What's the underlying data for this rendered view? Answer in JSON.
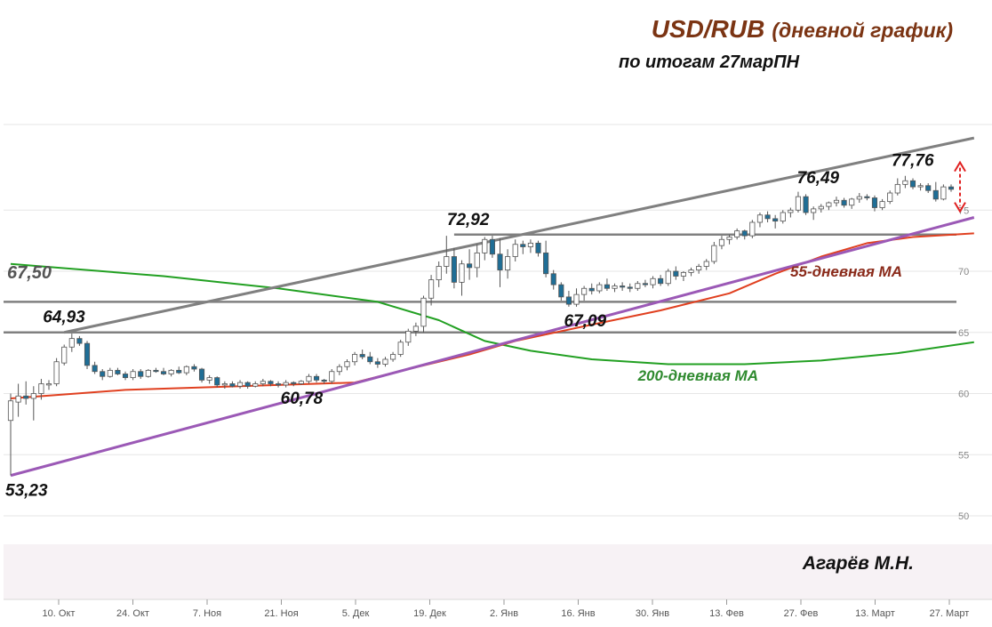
{
  "title": {
    "main": "USD/RUB",
    "sub": "(дневной график)",
    "line2": "по итогам 27марПН"
  },
  "author": "Агарёв М.Н.",
  "chart_data": {
    "type": "candlestick",
    "grid": true,
    "y_axis": {
      "side": "right",
      "ticks": [
        50,
        55,
        60,
        65,
        70,
        75
      ],
      "ylim": [
        50,
        82
      ]
    },
    "x_axis": {
      "ticks": [
        "10. Окт",
        "24. Окт",
        "7. Ноя",
        "21. Ноя",
        "5. Дек",
        "19. Дек",
        "2. Янв",
        "16. Янв",
        "30. Янв",
        "13. Фев",
        "27. Фев",
        "13. Март",
        "27. Март"
      ]
    },
    "candles": [
      [
        57.8,
        60.0,
        53.3,
        59.4
      ],
      [
        59.3,
        60.8,
        58.1,
        59.8
      ],
      [
        59.8,
        61.0,
        59.1,
        59.6
      ],
      [
        59.6,
        60.6,
        57.8,
        60.0
      ],
      [
        60.0,
        61.2,
        59.5,
        60.8
      ],
      [
        60.7,
        61.1,
        60.3,
        60.8
      ],
      [
        60.8,
        62.9,
        60.6,
        62.6
      ],
      [
        62.5,
        64.0,
        62.3,
        63.8
      ],
      [
        63.8,
        64.9,
        63.4,
        64.5
      ],
      [
        64.5,
        64.7,
        63.9,
        64.1
      ],
      [
        64.1,
        64.3,
        62.0,
        62.3
      ],
      [
        62.3,
        62.6,
        61.6,
        61.8
      ],
      [
        61.8,
        62.0,
        61.1,
        61.4
      ],
      [
        61.4,
        62.1,
        61.3,
        61.9
      ],
      [
        61.9,
        62.1,
        61.5,
        61.6
      ],
      [
        61.6,
        61.8,
        61.1,
        61.3
      ],
      [
        61.3,
        62.0,
        61.1,
        61.8
      ],
      [
        61.8,
        62.0,
        61.2,
        61.4
      ],
      [
        61.4,
        62.0,
        61.3,
        61.9
      ],
      [
        61.9,
        62.1,
        61.7,
        61.8
      ],
      [
        61.8,
        62.1,
        61.5,
        61.6
      ],
      [
        61.6,
        62.0,
        61.4,
        61.9
      ],
      [
        61.9,
        62.2,
        61.6,
        61.7
      ],
      [
        61.7,
        62.3,
        61.5,
        62.2
      ],
      [
        62.2,
        62.4,
        61.8,
        62.0
      ],
      [
        62.0,
        62.1,
        60.9,
        61.1
      ],
      [
        61.1,
        61.5,
        60.8,
        61.3
      ],
      [
        61.3,
        61.4,
        60.5,
        60.7
      ],
      [
        60.7,
        61.0,
        60.4,
        60.8
      ],
      [
        60.8,
        61.0,
        60.5,
        60.6
      ],
      [
        60.6,
        61.1,
        60.4,
        60.9
      ],
      [
        60.9,
        61.0,
        60.4,
        60.6
      ],
      [
        60.6,
        61.0,
        60.5,
        60.8
      ],
      [
        60.8,
        61.2,
        60.6,
        61.0
      ],
      [
        61.0,
        61.1,
        60.6,
        60.8
      ],
      [
        60.8,
        61.0,
        60.5,
        60.7
      ],
      [
        60.7,
        61.1,
        60.5,
        60.9
      ],
      [
        60.9,
        61.0,
        60.6,
        60.8
      ],
      [
        60.8,
        61.1,
        60.7,
        61.0
      ],
      [
        61.0,
        61.6,
        60.8,
        61.4
      ],
      [
        61.4,
        61.6,
        60.9,
        61.1
      ],
      [
        61.1,
        61.2,
        60.8,
        61.0
      ],
      [
        61.0,
        62.0,
        60.8,
        61.8
      ],
      [
        61.8,
        62.4,
        61.5,
        62.2
      ],
      [
        62.2,
        62.8,
        61.9,
        62.6
      ],
      [
        62.6,
        63.4,
        62.3,
        63.2
      ],
      [
        63.2,
        63.6,
        62.8,
        63.0
      ],
      [
        63.0,
        63.4,
        62.4,
        62.6
      ],
      [
        62.6,
        62.9,
        62.1,
        62.4
      ],
      [
        62.4,
        63.0,
        62.2,
        62.8
      ],
      [
        62.8,
        63.4,
        62.6,
        63.2
      ],
      [
        63.2,
        64.4,
        63.0,
        64.2
      ],
      [
        64.2,
        65.3,
        63.9,
        65.1
      ],
      [
        65.1,
        65.8,
        64.7,
        65.5
      ],
      [
        65.5,
        68.0,
        65.0,
        67.8
      ],
      [
        67.8,
        69.7,
        67.2,
        69.3
      ],
      [
        69.3,
        70.8,
        68.7,
        70.4
      ],
      [
        70.4,
        72.9,
        69.8,
        71.2
      ],
      [
        71.2,
        71.9,
        68.6,
        69.1
      ],
      [
        69.1,
        70.9,
        68.0,
        70.6
      ],
      [
        70.6,
        71.8,
        69.3,
        70.3
      ],
      [
        70.3,
        72.2,
        69.5,
        71.5
      ],
      [
        71.5,
        72.8,
        70.9,
        72.6
      ],
      [
        72.6,
        72.9,
        71.1,
        71.4
      ],
      [
        71.4,
        72.7,
        68.7,
        70.1
      ],
      [
        70.1,
        71.8,
        69.4,
        71.2
      ],
      [
        71.2,
        72.6,
        70.8,
        72.2
      ],
      [
        72.2,
        72.5,
        71.4,
        72.0
      ],
      [
        72.0,
        72.6,
        71.5,
        72.3
      ],
      [
        72.3,
        72.5,
        71.2,
        71.5
      ],
      [
        71.5,
        72.5,
        69.5,
        69.8
      ],
      [
        69.8,
        70.1,
        68.5,
        68.9
      ],
      [
        68.9,
        69.1,
        67.6,
        67.9
      ],
      [
        67.9,
        68.4,
        67.1,
        67.3
      ],
      [
        67.3,
        68.6,
        67.1,
        68.1
      ],
      [
        68.1,
        68.8,
        67.6,
        68.6
      ],
      [
        68.6,
        69.0,
        68.1,
        68.4
      ],
      [
        68.4,
        69.1,
        68.2,
        68.9
      ],
      [
        68.9,
        69.4,
        68.4,
        68.6
      ],
      [
        68.6,
        69.0,
        68.3,
        68.8
      ],
      [
        68.8,
        69.1,
        68.4,
        68.7
      ],
      [
        68.7,
        69.0,
        68.3,
        68.6
      ],
      [
        68.6,
        69.2,
        68.4,
        69.0
      ],
      [
        69.0,
        69.3,
        68.7,
        68.9
      ],
      [
        68.9,
        69.6,
        68.6,
        69.4
      ],
      [
        69.4,
        69.7,
        68.8,
        69.0
      ],
      [
        69.0,
        70.2,
        68.8,
        70.0
      ],
      [
        70.0,
        70.4,
        69.3,
        69.6
      ],
      [
        69.6,
        70.0,
        69.2,
        69.9
      ],
      [
        69.9,
        70.3,
        69.6,
        70.1
      ],
      [
        70.1,
        70.6,
        69.8,
        70.4
      ],
      [
        70.4,
        71.0,
        70.1,
        70.8
      ],
      [
        70.8,
        72.4,
        70.6,
        72.1
      ],
      [
        72.1,
        72.9,
        71.8,
        72.6
      ],
      [
        72.6,
        73.0,
        72.2,
        72.8
      ],
      [
        72.8,
        73.5,
        72.6,
        73.3
      ],
      [
        73.3,
        73.4,
        72.6,
        72.9
      ],
      [
        72.9,
        74.2,
        72.7,
        74.0
      ],
      [
        74.0,
        74.8,
        73.6,
        74.6
      ],
      [
        74.6,
        74.9,
        74.0,
        74.3
      ],
      [
        74.3,
        74.6,
        73.5,
        74.1
      ],
      [
        74.1,
        75.0,
        73.9,
        74.8
      ],
      [
        74.8,
        75.2,
        74.4,
        75.0
      ],
      [
        75.0,
        76.5,
        74.8,
        76.1
      ],
      [
        76.1,
        76.3,
        74.6,
        74.8
      ],
      [
        74.8,
        75.3,
        74.2,
        75.1
      ],
      [
        75.1,
        75.5,
        74.8,
        75.3
      ],
      [
        75.3,
        75.7,
        75.0,
        75.6
      ],
      [
        75.6,
        76.1,
        75.3,
        75.8
      ],
      [
        75.8,
        76.0,
        75.2,
        75.4
      ],
      [
        75.4,
        76.0,
        75.1,
        75.9
      ],
      [
        75.9,
        76.4,
        75.6,
        76.1
      ],
      [
        76.1,
        76.3,
        75.8,
        76.0
      ],
      [
        76.0,
        76.2,
        74.9,
        75.2
      ],
      [
        75.2,
        75.9,
        75.0,
        75.7
      ],
      [
        75.7,
        76.6,
        75.5,
        76.4
      ],
      [
        76.4,
        77.6,
        76.2,
        77.1
      ],
      [
        77.1,
        77.8,
        76.8,
        77.4
      ],
      [
        77.4,
        77.6,
        76.7,
        76.9
      ],
      [
        76.9,
        77.2,
        76.6,
        77.0
      ],
      [
        77.0,
        77.2,
        76.4,
        76.6
      ],
      [
        76.6,
        77.3,
        75.7,
        75.9
      ],
      [
        75.9,
        77.1,
        75.8,
        76.9
      ],
      [
        76.9,
        77.1,
        76.5,
        76.7
      ]
    ],
    "ma55": [
      [
        0,
        59.6
      ],
      [
        15,
        60.3
      ],
      [
        30,
        60.6
      ],
      [
        45,
        60.9
      ],
      [
        52,
        62.0
      ],
      [
        60,
        63.2
      ],
      [
        66,
        64.3
      ],
      [
        75,
        65.5
      ],
      [
        85,
        66.8
      ],
      [
        94,
        68.2
      ],
      [
        100,
        69.8
      ],
      [
        106,
        71.2
      ],
      [
        112,
        72.3
      ],
      [
        118,
        72.8
      ],
      [
        126,
        73.1
      ]
    ],
    "ma200": [
      [
        0,
        70.6
      ],
      [
        20,
        69.6
      ],
      [
        35,
        68.6
      ],
      [
        48,
        67.5
      ],
      [
        56,
        66.0
      ],
      [
        62,
        64.3
      ],
      [
        68,
        63.5
      ],
      [
        76,
        62.8
      ],
      [
        86,
        62.4
      ],
      [
        96,
        62.4
      ],
      [
        106,
        62.7
      ],
      [
        116,
        63.3
      ],
      [
        126,
        64.2
      ]
    ],
    "horizontal_levels": [
      67.5,
      65.0,
      73.0
    ],
    "trend_lines": [
      {
        "color": "#808080",
        "from": [
          7,
          65.0
        ],
        "to": [
          126,
          80.9
        ]
      },
      {
        "color": "#9b59b6",
        "from": [
          0,
          53.3
        ],
        "to": [
          126,
          74.4
        ]
      }
    ],
    "annotations": [
      {
        "text": "53,23",
        "x": 0,
        "y": 53.23
      },
      {
        "text": "64,93",
        "x": 7,
        "y": 64.93
      },
      {
        "text": "60,78",
        "x": 36,
        "y": 60.78
      },
      {
        "text": "72,92",
        "x": 58,
        "y": 72.92
      },
      {
        "text": "67,09",
        "x": 74,
        "y": 67.09
      },
      {
        "text": "76,49",
        "x": 104,
        "y": 76.49
      },
      {
        "text": "77,76",
        "x": 118,
        "y": 77.76
      }
    ],
    "level_label": "67,50",
    "ma55_label": "55-дневная МА",
    "ma200_label": "200-дневная МА",
    "colors": {
      "candle_up": "#ffffff",
      "candle_down": "#1f6e96",
      "candle_outline": "#555555",
      "ma55": "#e04020",
      "ma200": "#22a022",
      "level": "#808080",
      "trend_gray": "#808080",
      "trend_purple": "#9b59b6",
      "arrow": "#e02020"
    }
  }
}
